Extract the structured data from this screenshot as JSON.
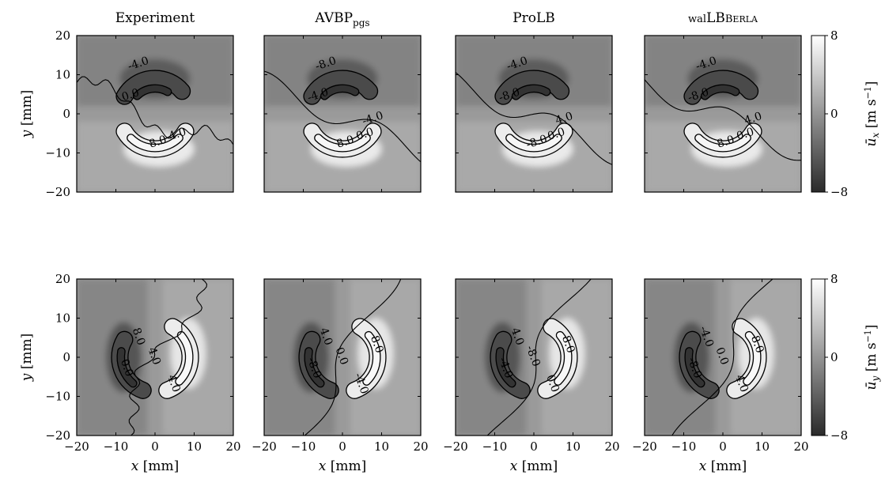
{
  "figure": {
    "column_titles": [
      "Experiment",
      "AVBP",
      "ProLB",
      "WALBERLA"
    ],
    "avbp_subscript": "pgs",
    "walberla_lead": "WAL",
    "walberla_tail": "BERLA",
    "ylabel_var": "y",
    "ylabel_unit": "[mm]",
    "xlabel_var": "x",
    "xlabel_unit": "[mm]",
    "colorbar_label_ux": "ū",
    "colorbar_label_ux_sub": "x",
    "colorbar_label_uy": "ū",
    "colorbar_label_uy_sub": "y",
    "colorbar_unit": "[m s",
    "colorbar_unit_exp": "−1",
    "colorbar_unit_close": "]"
  },
  "chart_data": [
    {
      "type": "heatmap",
      "variable": "ū_x",
      "panels": [
        "Experiment",
        "AVBP_pgs",
        "ProLB",
        "waLBerla"
      ],
      "xlim": [
        -20,
        20
      ],
      "ylim": [
        -20,
        20
      ],
      "xticks": [
        -20,
        -10,
        0,
        10,
        20
      ],
      "yticks": [
        -20,
        -10,
        0,
        10,
        20
      ],
      "xlabel": "x [mm]",
      "ylabel": "y [mm]",
      "colorbar": {
        "range": [
          -8,
          8
        ],
        "ticks": [
          -8,
          0,
          8
        ],
        "label": "ū_x [m s^-1]",
        "cmap": "grayscale"
      },
      "contour_levels": [
        -8.0,
        -4.0,
        0.0,
        4.0,
        8.0
      ],
      "contour_labels": {
        "Experiment": [
          "-4.0",
          "0.0",
          "4.0",
          "8.0"
        ],
        "AVBP_pgs": [
          "-8.0",
          "-4.0",
          "0.0",
          "8.0",
          "-4.0"
        ],
        "ProLB": [
          "-4.0",
          "-8.0",
          "0.0",
          "-8.0",
          "4.0"
        ],
        "waLBerla": [
          "-4.0",
          "-8.0",
          "0.0",
          "8.0",
          "4.0"
        ]
      }
    },
    {
      "type": "heatmap",
      "variable": "ū_y",
      "panels": [
        "Experiment",
        "AVBP_pgs",
        "ProLB",
        "waLBerla"
      ],
      "xlim": [
        -20,
        20
      ],
      "ylim": [
        -20,
        20
      ],
      "xticks": [
        -20,
        -10,
        0,
        10,
        20
      ],
      "yticks": [
        -20,
        -10,
        0,
        10,
        20
      ],
      "xlabel": "x [mm]",
      "ylabel": "y [mm]",
      "colorbar": {
        "range": [
          -8,
          8
        ],
        "ticks": [
          -8,
          0,
          8
        ],
        "label": "ū_y [m s^-1]",
        "cmap": "grayscale"
      },
      "contour_levels": [
        -8.0,
        -4.0,
        0.0,
        4.0,
        8.0
      ],
      "contour_labels": {
        "Experiment": [
          "0.0",
          "4.0",
          "4.0",
          "8.0"
        ],
        "AVBP_pgs": [
          "-8.0",
          "0.0",
          "-4.0",
          "4.0",
          "8.0"
        ],
        "ProLB": [
          "-4.0",
          "-8.0",
          "0.0",
          "4.0",
          "8.0"
        ],
        "waLBerla": [
          "-8.0",
          "0.0",
          "4.0",
          "-4.0",
          "8.0"
        ]
      }
    }
  ]
}
